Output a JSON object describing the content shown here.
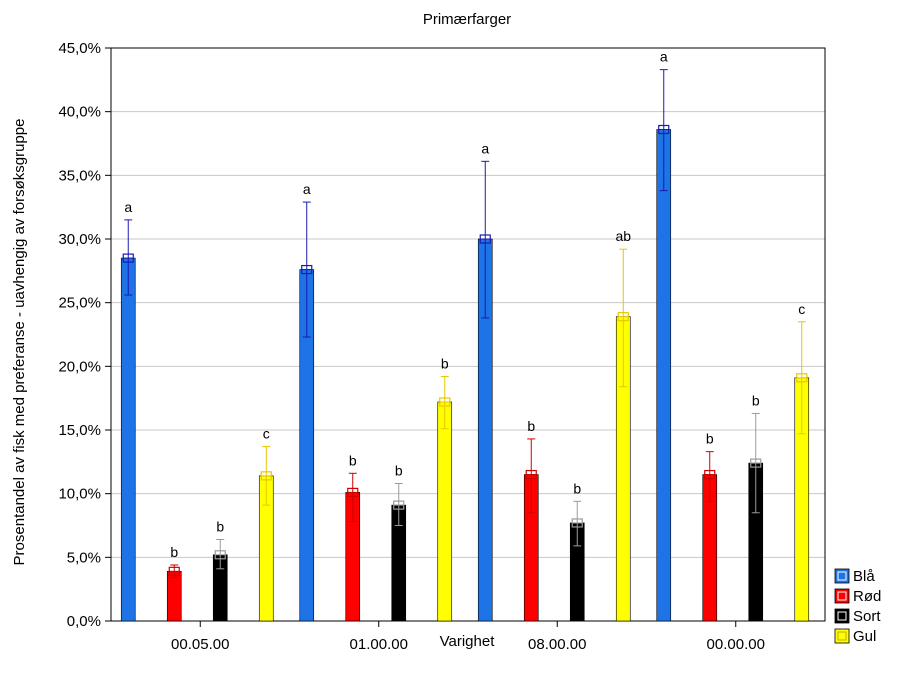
{
  "chart_data": {
    "type": "bar",
    "title": "Primærfarger",
    "xlabel": "Varighet",
    "ylabel": "Prosentandel av fisk med preferanse - uavhengig av forsøksgruppe",
    "categories": [
      "00.05.00",
      "01.00.00",
      "08.00.00",
      "00.00.00"
    ],
    "ylim": [
      0,
      45
    ],
    "yticks": [
      "0,0%",
      "5,0%",
      "10,0%",
      "15,0%",
      "20,0%",
      "25,0%",
      "30,0%",
      "35,0%",
      "40,0%",
      "45,0%"
    ],
    "grid": true,
    "legend_position": "bottom-right",
    "series": [
      {
        "name": "Blå",
        "color": "#1e73e6",
        "values": [
          28.5,
          27.6,
          30.0,
          38.6
        ],
        "err_low": [
          25.6,
          22.3,
          23.8,
          33.8
        ],
        "err_high": [
          31.5,
          32.9,
          36.1,
          43.3
        ],
        "labels": [
          "a",
          "a",
          "a",
          "a"
        ]
      },
      {
        "name": "Rød",
        "color": "#ff0000",
        "values": [
          3.9,
          10.1,
          11.5,
          11.5
        ],
        "err_low": [
          3.4,
          7.8,
          8.5,
          9.4
        ],
        "err_high": [
          4.4,
          11.6,
          14.3,
          13.3
        ],
        "labels": [
          "b",
          "b",
          "b",
          "b"
        ]
      },
      {
        "name": "Sort",
        "color": "#000000",
        "values": [
          5.2,
          9.1,
          7.7,
          12.4
        ],
        "err_low": [
          4.1,
          7.5,
          5.9,
          8.5
        ],
        "err_high": [
          6.4,
          10.8,
          9.4,
          16.3
        ],
        "labels": [
          "b",
          "b",
          "b",
          "b"
        ]
      },
      {
        "name": "Gul",
        "color": "#ffff00",
        "values": [
          11.4,
          17.2,
          23.9,
          19.1
        ],
        "err_low": [
          9.1,
          15.1,
          18.4,
          14.7
        ],
        "err_high": [
          13.7,
          19.2,
          29.2,
          23.5
        ],
        "labels": [
          "c",
          "b",
          "ab",
          "c"
        ]
      }
    ]
  }
}
